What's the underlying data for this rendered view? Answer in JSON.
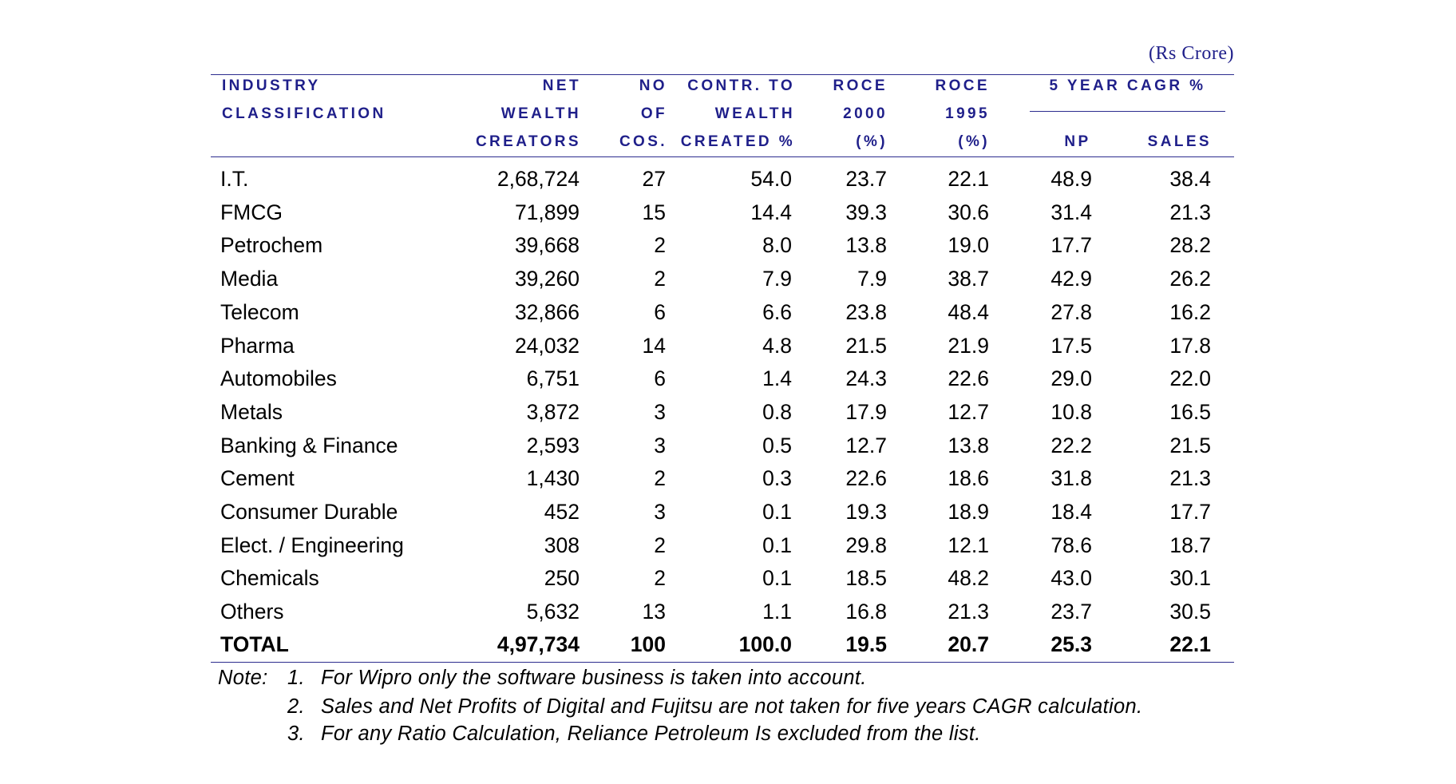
{
  "unit_label": "(Rs Crore)",
  "headers": {
    "industry": [
      "INDUSTRY",
      "CLASSIFICATION"
    ],
    "net_wealth": [
      "NET",
      "WEALTH",
      "CREATORS"
    ],
    "no_cos": [
      "NO",
      "OF",
      "COS."
    ],
    "contr": [
      "CONTR. TO",
      "WEALTH",
      "CREATED %"
    ],
    "roce2000": [
      "ROCE",
      "2000",
      "(%)"
    ],
    "roce1995": [
      "ROCE",
      "1995",
      "(%)"
    ],
    "cagr": "5 YEAR CAGR %",
    "np": "NP",
    "sales": "SALES"
  },
  "rows": [
    {
      "industry": "I.T.",
      "net_wealth": "2,68,724",
      "no_cos": "27",
      "contr": "54.0",
      "roce2000": "23.7",
      "roce1995": "22.1",
      "np": "48.9",
      "sales": "38.4"
    },
    {
      "industry": "FMCG",
      "net_wealth": "71,899",
      "no_cos": "15",
      "contr": "14.4",
      "roce2000": "39.3",
      "roce1995": "30.6",
      "np": "31.4",
      "sales": "21.3"
    },
    {
      "industry": "Petrochem",
      "net_wealth": "39,668",
      "no_cos": "2",
      "contr": "8.0",
      "roce2000": "13.8",
      "roce1995": "19.0",
      "np": "17.7",
      "sales": "28.2"
    },
    {
      "industry": "Media",
      "net_wealth": "39,260",
      "no_cos": "2",
      "contr": "7.9",
      "roce2000": "7.9",
      "roce1995": "38.7",
      "np": "42.9",
      "sales": "26.2"
    },
    {
      "industry": "Telecom",
      "net_wealth": "32,866",
      "no_cos": "6",
      "contr": "6.6",
      "roce2000": "23.8",
      "roce1995": "48.4",
      "np": "27.8",
      "sales": "16.2"
    },
    {
      "industry": "Pharma",
      "net_wealth": "24,032",
      "no_cos": "14",
      "contr": "4.8",
      "roce2000": "21.5",
      "roce1995": "21.9",
      "np": "17.5",
      "sales": "17.8"
    },
    {
      "industry": "Automobiles",
      "net_wealth": "6,751",
      "no_cos": "6",
      "contr": "1.4",
      "roce2000": "24.3",
      "roce1995": "22.6",
      "np": "29.0",
      "sales": "22.0"
    },
    {
      "industry": "Metals",
      "net_wealth": "3,872",
      "no_cos": "3",
      "contr": "0.8",
      "roce2000": "17.9",
      "roce1995": "12.7",
      "np": "10.8",
      "sales": "16.5"
    },
    {
      "industry": "Banking & Finance",
      "net_wealth": "2,593",
      "no_cos": "3",
      "contr": "0.5",
      "roce2000": "12.7",
      "roce1995": "13.8",
      "np": "22.2",
      "sales": "21.5"
    },
    {
      "industry": "Cement",
      "net_wealth": "1,430",
      "no_cos": "2",
      "contr": "0.3",
      "roce2000": "22.6",
      "roce1995": "18.6",
      "np": "31.8",
      "sales": "21.3"
    },
    {
      "industry": "Consumer Durable",
      "net_wealth": "452",
      "no_cos": "3",
      "contr": "0.1",
      "roce2000": "19.3",
      "roce1995": "18.9",
      "np": "18.4",
      "sales": "17.7"
    },
    {
      "industry": "Elect. / Engineering",
      "net_wealth": "308",
      "no_cos": "2",
      "contr": "0.1",
      "roce2000": "29.8",
      "roce1995": "12.1",
      "np": "78.6",
      "sales": "18.7"
    },
    {
      "industry": "Chemicals",
      "net_wealth": "250",
      "no_cos": "2",
      "contr": "0.1",
      "roce2000": "18.5",
      "roce1995": "48.2",
      "np": "43.0",
      "sales": "30.1"
    },
    {
      "industry": "Others",
      "net_wealth": "5,632",
      "no_cos": "13",
      "contr": "1.1",
      "roce2000": "16.8",
      "roce1995": "21.3",
      "np": "23.7",
      "sales": "30.5"
    }
  ],
  "total": {
    "industry": "TOTAL",
    "net_wealth": "4,97,734",
    "no_cos": "100",
    "contr": "100.0",
    "roce2000": "19.5",
    "roce1995": "20.7",
    "np": "25.3",
    "sales": "22.1"
  },
  "notes": {
    "label": "Note:",
    "items": [
      {
        "num": "1.",
        "text": "For Wipro only the software business is taken into account."
      },
      {
        "num": "2.",
        "text": "Sales and Net Profits of Digital and Fujitsu are not taken for five years CAGR calculation."
      },
      {
        "num": "3.",
        "text": "For any Ratio Calculation, Reliance Petroleum Is excluded from the list."
      }
    ]
  }
}
